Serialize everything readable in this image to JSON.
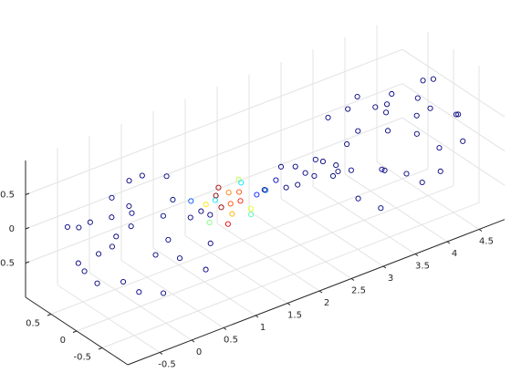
{
  "chart_data": {
    "type": "scatter3",
    "x": [
      -0.62,
      0.35,
      -0.12,
      0.71,
      -0.44,
      0.18,
      -0.83,
      0.52,
      0.05,
      -0.31,
      0.64,
      -0.55,
      0.27,
      -0.07,
      0.81,
      -0.68,
      0.42,
      -0.24,
      0.11,
      -0.91,
      0.58,
      -0.38,
      0.22,
      -0.15,
      0.74,
      -0.49,
      0.33,
      -0.02,
      0.47,
      -0.71,
      4.62,
      3.65,
      4.12,
      3.29,
      4.44,
      3.82,
      4.83,
      3.48,
      3.95,
      4.31,
      3.36,
      4.55,
      3.73,
      4.07,
      3.19,
      4.68,
      3.58,
      4.24,
      3.89,
      4.91,
      3.42,
      4.38,
      3.78,
      4.15,
      3.26,
      4.49,
      3.67,
      4.02,
      3.53,
      4.71,
      0.95,
      1.05,
      1.12,
      1.2,
      1.25,
      1.3,
      1.33,
      1.38,
      1.42,
      1.45,
      1.5,
      1.55,
      1.6,
      1.65,
      1.72,
      1.8,
      1.9,
      2.0,
      2.1,
      2.2,
      2.3,
      2.4,
      2.5,
      2.6,
      2.7,
      2.8,
      2.9,
      3.0,
      1.36,
      1.48
    ],
    "y": [
      0.21,
      -0.54,
      0.67,
      0.12,
      -0.38,
      0.45,
      -0.19,
      -0.72,
      0.03,
      0.82,
      0.29,
      0.41,
      -0.11,
      -0.63,
      -0.35,
      0.58,
      0.71,
      -0.27,
      0.36,
      0.08,
      -0.46,
      -0.77,
      0.84,
      0.15,
      0.48,
      -0.05,
      -0.22,
      0.53,
      -0.69,
      -0.41,
      0.35,
      0.44,
      -0.52,
      -0.61,
      0.71,
      0.18,
      -0.27,
      0.09,
      0.88,
      -0.14,
      0.53,
      -0.49,
      -0.85,
      0.31,
      0.22,
      0.12,
      -0.33,
      -0.57,
      0.62,
      -0.08,
      0.41,
      0.27,
      -0.19,
      -0.66,
      -0.18,
      0.79,
      0.55,
      -0.38,
      -0.29,
      0.48,
      0.2,
      -0.15,
      0.05,
      0.22,
      -0.2,
      0.1,
      -0.05,
      0.25,
      -0.18,
      0.02,
      0.15,
      -0.22,
      0.08,
      -0.1,
      0.18,
      -0.2,
      0.1,
      -0.15,
      0.2,
      0.0,
      -0.2,
      0.15,
      -0.1,
      0.22,
      -0.05,
      0.1,
      -0.2,
      0.18,
      0.12,
      -0.08
    ],
    "z": [
      0.35,
      0.44,
      -0.52,
      -0.61,
      0.71,
      0.18,
      -0.27,
      0.09,
      0.88,
      -0.14,
      0.53,
      -0.49,
      -0.85,
      0.31,
      0.22,
      0.12,
      -0.33,
      -0.57,
      0.62,
      -0.08,
      0.41,
      0.27,
      -0.19,
      -0.66,
      -0.18,
      0.79,
      0.55,
      -0.38,
      -0.29,
      0.48,
      0.21,
      -0.54,
      0.67,
      0.12,
      -0.38,
      0.45,
      -0.19,
      -0.72,
      0.03,
      0.82,
      0.29,
      0.41,
      -0.11,
      -0.63,
      -0.35,
      0.58,
      0.71,
      -0.27,
      0.36,
      0.08,
      -0.46,
      -0.77,
      0.84,
      0.15,
      0.48,
      -0.05,
      -0.22,
      0.53,
      -0.69,
      -0.41,
      0.1,
      0.25,
      -0.2,
      -0.05,
      0.15,
      0.22,
      -0.25,
      0.0,
      0.12,
      -0.18,
      0.05,
      -0.02,
      0.24,
      -0.2,
      0.1,
      0.15,
      -0.1,
      0.2,
      -0.15,
      0.25,
      0.05,
      -0.2,
      0.1,
      0.0,
      0.2,
      -0.15,
      0.12,
      -0.05,
      -0.1,
      0.18
    ],
    "values": [
      0,
      0,
      0,
      0,
      0,
      0,
      0,
      0,
      0,
      0,
      0,
      0,
      0,
      0,
      0,
      0,
      0,
      0,
      0,
      0,
      0,
      0,
      0,
      0,
      0,
      0,
      0,
      0,
      0,
      0,
      0,
      0,
      0,
      0,
      0,
      0,
      0,
      0,
      0,
      0,
      0,
      0,
      0,
      0,
      0,
      0,
      0,
      0,
      0,
      0,
      0,
      0,
      0,
      0,
      0,
      0,
      0,
      0,
      0,
      0,
      0.2,
      0.35,
      0.5,
      0.65,
      0.8,
      0.95,
      0.9,
      1.0,
      0.85,
      0.7,
      0.75,
      0.6,
      0.55,
      0.45,
      0.35,
      0.25,
      0.15,
      0.05,
      0,
      0,
      0,
      0,
      0,
      0,
      0,
      0,
      0,
      0,
      0.98,
      0.8
    ],
    "colormap": "jet",
    "clim": [
      0,
      1
    ],
    "xlim": [
      -1,
      4.9
    ],
    "ylim": [
      -1,
      1
    ],
    "zlim": [
      -1,
      1
    ],
    "xticks": [
      -0.5,
      0,
      0.5,
      1,
      1.5,
      2,
      2.5,
      3,
      3.5,
      4,
      4.5
    ],
    "yticks": [
      -0.5,
      0,
      0.5
    ],
    "zticks": [
      -0.5,
      0,
      0.5
    ],
    "grid": true
  }
}
